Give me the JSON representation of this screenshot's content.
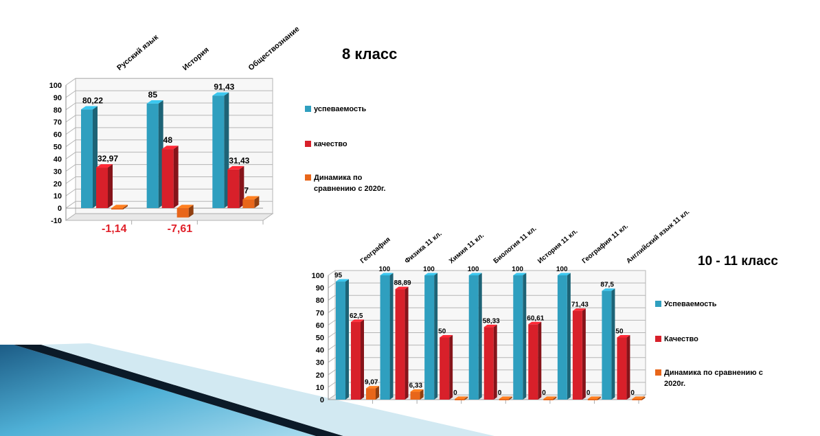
{
  "colors": {
    "uspevaemost": "#2f9fbf",
    "kachestvo": "#d8202a",
    "dinamika": "#e8661a",
    "negative_label": "#e0212a"
  },
  "chart_data": [
    {
      "type": "bar",
      "title": "8 класс",
      "categories": [
        "Русский язык",
        "История",
        "Обществознание"
      ],
      "ylim": [
        -10,
        100
      ],
      "yticks": [
        100,
        90,
        80,
        70,
        60,
        50,
        40,
        30,
        20,
        10,
        0,
        -10
      ],
      "grid": true,
      "legend_position": "right",
      "series": [
        {
          "name": "успеваемость",
          "values": [
            80.22,
            85,
            91.43
          ],
          "labels": [
            "80,22",
            "85",
            "91,43"
          ]
        },
        {
          "name": "качество",
          "values": [
            32.97,
            48,
            31.43
          ],
          "labels": [
            "32,97",
            "48",
            "31,43"
          ]
        },
        {
          "name": "Динамика по сравнению с 2020г.",
          "legend_lines": [
            "Динамика по",
            "сравнению с 2020г."
          ],
          "values": [
            -1.14,
            -7.61,
            7
          ],
          "labels": [
            "-1,14",
            "-7,61",
            "7"
          ]
        }
      ]
    },
    {
      "type": "bar",
      "title": "10 - 11 класс",
      "categories": [
        "География",
        "Физика 11 кл.",
        "Химия 11 кл.",
        "Биология 11 кл.",
        "История 11 кл.",
        "География 11 кл.",
        "Английский язык 11 кл."
      ],
      "ylim": [
        0,
        100
      ],
      "yticks": [
        100,
        90,
        80,
        70,
        60,
        50,
        40,
        30,
        20,
        10,
        0
      ],
      "grid": true,
      "legend_position": "right",
      "series": [
        {
          "name": "Успеваемость",
          "values": [
            95,
            100,
            100,
            100,
            100,
            100,
            87.5
          ],
          "labels": [
            "95",
            "100",
            "100",
            "100",
            "100",
            "100",
            "87,5"
          ]
        },
        {
          "name": "Качество",
          "values": [
            62.5,
            88.89,
            50,
            58.33,
            60.61,
            71.43,
            50
          ],
          "labels": [
            "62,5",
            "88,89",
            "50",
            "58,33",
            "60,61",
            "71,43",
            "50"
          ]
        },
        {
          "name": "Динамика по сравнению с 2020г.",
          "legend_lines": [
            "Динамика по сравнению с",
            "2020г."
          ],
          "values": [
            9.07,
            6.33,
            0,
            0,
            0,
            0,
            0
          ],
          "labels": [
            "9,07",
            "6,33",
            "0",
            "0",
            "0",
            "0",
            "0"
          ]
        }
      ]
    }
  ]
}
